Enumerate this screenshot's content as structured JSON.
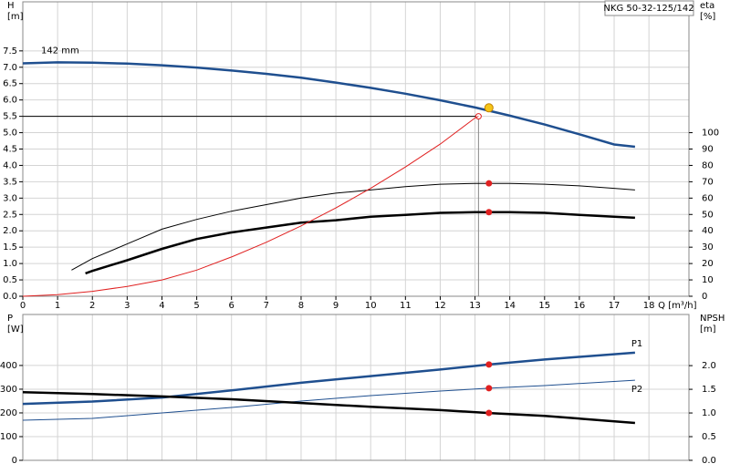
{
  "chart_data": [
    {
      "type": "line",
      "title": "NKG 50-32-125/142",
      "y_label": [
        "H",
        "[m]"
      ],
      "y2_label": [
        "eta",
        "[%]"
      ],
      "x_label": "Q [m³/h]",
      "xlim": [
        0,
        19.15
      ],
      "xticks": [
        0,
        1,
        2,
        3,
        4,
        5,
        6,
        7,
        8,
        9,
        10,
        11,
        12,
        13,
        14,
        15,
        16,
        17,
        18
      ],
      "ylim": [
        0,
        9
      ],
      "yticks": [
        {
          "value": 0,
          "label": "0.0"
        },
        0.5,
        {
          "value": 1,
          "label": "1.0"
        },
        1.5,
        {
          "value": 2,
          "label": "2.0"
        },
        2.5,
        {
          "value": 3,
          "label": "3.0"
        },
        3.5,
        {
          "value": 4,
          "label": "4.0"
        },
        4.5,
        {
          "value": 5,
          "label": "5.0"
        },
        5.5,
        {
          "value": 6,
          "label": "6.0"
        },
        6.5,
        {
          "value": 7,
          "label": "7.0"
        },
        7.5
      ],
      "y2lim": [
        0,
        180
      ],
      "y2ticks": [
        0,
        10,
        20,
        30,
        40,
        50,
        60,
        70,
        80,
        90,
        100
      ],
      "grid": true,
      "series": [
        {
          "name": "142 mm",
          "color": "#1f4f8f",
          "style": "thick",
          "x": [
            0,
            1,
            2,
            3,
            4,
            5,
            6,
            7,
            8,
            9,
            10,
            11,
            12,
            13,
            14,
            15,
            16,
            17,
            17.6
          ],
          "values": [
            7.12,
            7.15,
            7.14,
            7.11,
            7.06,
            6.99,
            6.9,
            6.8,
            6.68,
            6.53,
            6.37,
            6.19,
            5.99,
            5.77,
            5.52,
            5.25,
            4.95,
            4.64,
            4.57
          ]
        },
        {
          "color": "#000000",
          "style": "thin",
          "axis": "y2",
          "x": [
            1.4,
            2,
            3,
            4,
            5,
            6,
            7,
            8,
            9,
            10,
            11,
            12,
            13,
            14,
            15,
            16,
            17,
            17.6
          ],
          "values": [
            16,
            23,
            32,
            41,
            47,
            52,
            56,
            60,
            63,
            65,
            67,
            68.5,
            69,
            69,
            68.5,
            67.5,
            66,
            65
          ]
        },
        {
          "color": "#000000",
          "style": "thick",
          "axis": "y2",
          "x": [
            1.8,
            2,
            3,
            4,
            5,
            6,
            7,
            8,
            9,
            10,
            11,
            12,
            13,
            14,
            15,
            16,
            17,
            17.6
          ],
          "values": [
            14,
            15.5,
            22,
            29,
            35,
            39,
            42,
            45,
            46.5,
            48.6,
            49.7,
            51,
            51.4,
            51.4,
            51,
            49.7,
            48.6,
            48
          ]
        },
        {
          "color": "#e02020",
          "style": "thin",
          "x": [
            0,
            1,
            2,
            3,
            4,
            5,
            6,
            7,
            8,
            9,
            10,
            11,
            12,
            13,
            13.1
          ],
          "values": [
            0,
            0.05,
            0.15,
            0.3,
            0.5,
            0.8,
            1.2,
            1.65,
            2.15,
            2.7,
            3.3,
            3.95,
            4.65,
            5.45,
            5.5
          ]
        }
      ],
      "setpoint": {
        "x": 13.1,
        "y": 5.5
      },
      "markers": [
        {
          "x": 13.4,
          "y": 5.76,
          "color": "#f5c518"
        },
        {
          "x": 13.4,
          "y": 69,
          "axis": "y2",
          "color": "#e02020"
        },
        {
          "x": 13.4,
          "y": 51.4,
          "axis": "y2",
          "color": "#e02020"
        }
      ]
    },
    {
      "type": "line",
      "y_label": [
        "P",
        "[W]"
      ],
      "y2_label": [
        "NPSH",
        "[m]"
      ],
      "xlim": [
        0,
        19.15
      ],
      "ylim": [
        0,
        615
      ],
      "yticks": [
        0,
        100,
        200,
        300,
        400
      ],
      "y2lim": [
        0,
        3.08
      ],
      "y2ticks": [
        {
          "value": 0,
          "label": "0.0"
        },
        0.5,
        {
          "value": 1,
          "label": "1.0"
        },
        1.5,
        {
          "value": 2,
          "label": "2.0"
        }
      ],
      "grid": true,
      "series": [
        {
          "name": "P1",
          "color": "#1f4f8f",
          "style": "thick",
          "x": [
            0,
            2,
            4,
            6,
            8,
            10,
            12,
            13.4,
            15,
            17.6
          ],
          "values": [
            238,
            248,
            265,
            295,
            327,
            355,
            383,
            404,
            425,
            454
          ]
        },
        {
          "name": "P2",
          "color": "#1f4f8f",
          "style": "thin",
          "x": [
            0,
            2,
            4,
            6,
            8,
            10,
            12,
            13.4,
            15,
            17.6
          ],
          "values": [
            169,
            177,
            200,
            223,
            250,
            273,
            292,
            304,
            315,
            338
          ]
        },
        {
          "color": "#000000",
          "style": "thick",
          "axis": "y2",
          "x": [
            0,
            2,
            4,
            6,
            8,
            10,
            12,
            13.4,
            15,
            17.6
          ],
          "values": [
            1.44,
            1.4,
            1.35,
            1.29,
            1.21,
            1.13,
            1.06,
            1.0,
            0.94,
            0.79
          ]
        }
      ],
      "markers": [
        {
          "x": 13.4,
          "y": 404,
          "color": "#e02020"
        },
        {
          "x": 13.4,
          "y": 304,
          "color": "#e02020"
        },
        {
          "x": 13.4,
          "y": 1.0,
          "axis": "y2",
          "color": "#e02020"
        }
      ]
    }
  ]
}
